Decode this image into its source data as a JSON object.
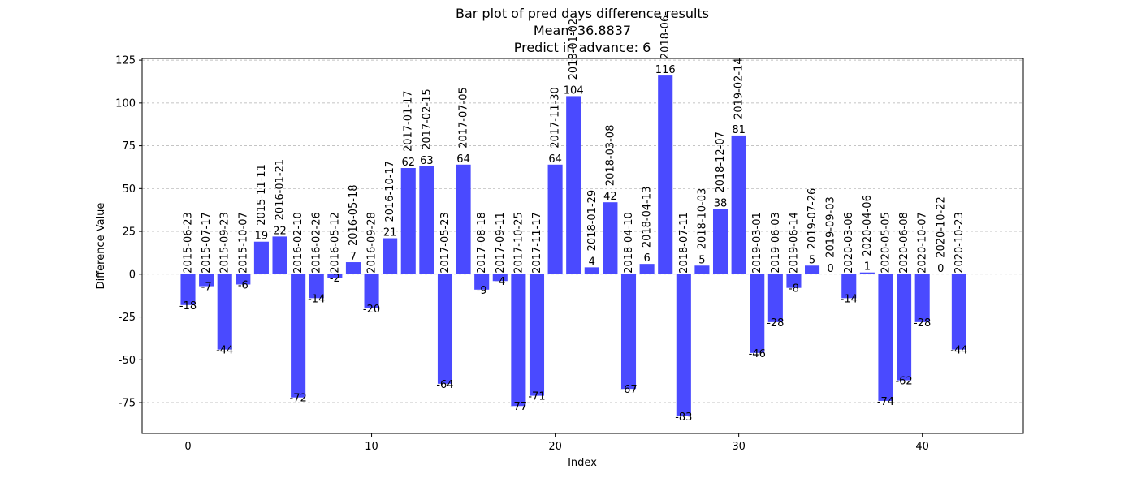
{
  "chart_data": {
    "type": "bar",
    "title": "Bar plot of pred days difference results",
    "subtitle_lines": [
      "Mean: 36.8837",
      "Predict in advance: 6"
    ],
    "xlabel": "Index",
    "ylabel": "Difference Value",
    "xlim": [
      -2.5,
      45.5
    ],
    "ylim": [
      -93,
      126
    ],
    "xticks": [
      0,
      10,
      20,
      30,
      40
    ],
    "yticks": [
      -75,
      -50,
      -25,
      0,
      25,
      50,
      75,
      100,
      125
    ],
    "grid": "y-dashed",
    "bar_color": "#4a4aff",
    "x": [
      0,
      1,
      2,
      3,
      4,
      5,
      6,
      7,
      8,
      9,
      10,
      11,
      12,
      13,
      14,
      15,
      16,
      17,
      18,
      19,
      20,
      21,
      22,
      23,
      24,
      25,
      26,
      27,
      28,
      29,
      30,
      31,
      32,
      33,
      34,
      35,
      36,
      37,
      38,
      39,
      40,
      41,
      42
    ],
    "values": [
      -18,
      -7,
      -44,
      -6,
      19,
      22,
      -72,
      -14,
      -2,
      7,
      -20,
      21,
      62,
      63,
      -64,
      64,
      -9,
      -4,
      -77,
      -71,
      64,
      104,
      4,
      42,
      -67,
      6,
      116,
      -83,
      5,
      38,
      81,
      -46,
      -28,
      -8,
      5,
      0,
      -14,
      1,
      -74,
      -62,
      -28,
      0,
      -44
    ],
    "dates": [
      "2015-06-23",
      "2015-07-17",
      "2015-09-23",
      "2015-10-07",
      "2015-11-11",
      "2016-01-21",
      "2016-02-10",
      "2016-02-26",
      "2016-05-12",
      "2016-05-18",
      "2016-09-28",
      "2016-10-17",
      "2017-01-17",
      "2017-02-15",
      "2017-05-23",
      "2017-07-05",
      "2017-08-18",
      "2017-09-11",
      "2017-10-25",
      "2017-11-17",
      "2017-11-30",
      "2018-01-02",
      "2018-01-29",
      "2018-03-08",
      "2018-04-10",
      "2018-04-13",
      "2018-06-",
      "2018-07-11",
      "2018-10-03",
      "2018-12-07",
      "2019-02-14",
      "2019-03-01",
      "2019-06-03",
      "2019-06-14",
      "2019-07-26",
      "2019-09-03",
      "2020-03-06",
      "2020-04-06",
      "2020-05-05",
      "2020-06-08",
      "2020-10-07",
      "2020-10-22",
      "2020-10-23"
    ]
  }
}
